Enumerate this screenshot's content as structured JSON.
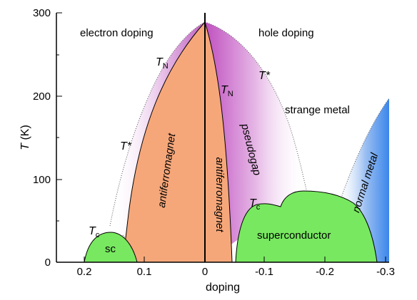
{
  "diagram": {
    "x_axis": {
      "title": "doping",
      "ticks": [
        "0.2",
        "0.1",
        "0",
        "-0.1",
        "-0.2",
        "-0.3"
      ]
    },
    "y_axis": {
      "title_symbol": "T",
      "title_unit": " (K)",
      "ticks": [
        "0",
        "100",
        "200",
        "300"
      ]
    },
    "labels": {
      "electron_doping": "electron doping",
      "hole_doping": "hole doping",
      "strange_metal": "strange metal",
      "normal_metal": "normal metal",
      "pseudogap": "pseudogap",
      "antiferromagnet_left": "antiferromagnet",
      "antiferromagnet_right": "antiferromagnet",
      "superconductor": "superconductor",
      "sc": "sc"
    },
    "symbols": {
      "T": "T",
      "N": "N",
      "c": "c",
      "star": "*"
    },
    "colors": {
      "antiferromagnet": "#f6a77a",
      "superconductor": "#78e860",
      "pseudogap": "#cc77cc",
      "normal_metal": "#4a90e8"
    }
  }
}
